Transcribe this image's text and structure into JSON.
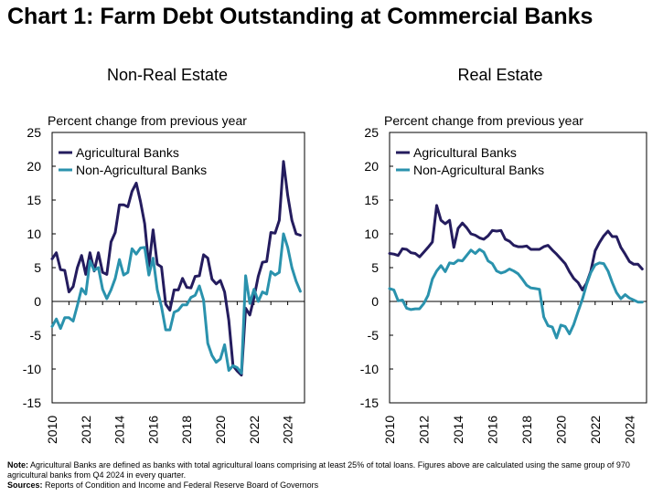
{
  "title": "Chart 1: Farm Debt Outstanding at Commercial Banks",
  "colors": {
    "agricultural": "#241c5e",
    "non_agricultural": "#2a92ad",
    "axis": "#000000"
  },
  "notes": {
    "note_label": "Note:",
    "note_text": " Agricultural Banks are defined as banks with total agricultural loans comprising at least 25% of total loans. Figures above are calculated using the same group of 970 agricultural banks from Q4 2024 in every quarter.",
    "sources_label": "Sources:",
    "sources_text": " Reports of Condition and Income and Federal Reserve Board of Governors"
  },
  "chart_data": [
    {
      "type": "line",
      "title": "Non-Real Estate",
      "ylabel": "Percent change from previous year",
      "xlim": [
        2010,
        2025
      ],
      "ylim": [
        -15,
        25
      ],
      "yticks": [
        "25",
        "20",
        "15",
        "10",
        "5",
        "0",
        "-5",
        "-10",
        "-15"
      ],
      "xticks": [
        "2010",
        "2012",
        "2014",
        "2016",
        "2018",
        "2020",
        "2022",
        "2024"
      ],
      "legend": "top-left",
      "series": [
        {
          "name": "Agricultural Banks",
          "x": [
            2010.0,
            2010.25,
            2010.5,
            2010.75,
            2011.0,
            2011.25,
            2011.5,
            2011.75,
            2012.0,
            2012.25,
            2012.5,
            2012.75,
            2013.0,
            2013.25,
            2013.5,
            2013.75,
            2014.0,
            2014.25,
            2014.5,
            2014.75,
            2015.0,
            2015.25,
            2015.5,
            2015.75,
            2016.0,
            2016.25,
            2016.5,
            2016.75,
            2017.0,
            2017.25,
            2017.5,
            2017.75,
            2018.0,
            2018.25,
            2018.5,
            2018.75,
            2019.0,
            2019.25,
            2019.5,
            2019.75,
            2020.0,
            2020.25,
            2020.5,
            2020.75,
            2021.0,
            2021.25,
            2021.5,
            2021.75,
            2022.0,
            2022.25,
            2022.5,
            2022.75,
            2023.0,
            2023.25,
            2023.5,
            2023.75,
            2024.0,
            2024.25,
            2024.5,
            2024.75
          ],
          "values": [
            6.3,
            7.2,
            4.7,
            4.6,
            1.4,
            2.2,
            5.0,
            6.8,
            4.0,
            7.2,
            4.5,
            7.2,
            4.3,
            4.0,
            8.8,
            10.2,
            14.3,
            14.3,
            14.0,
            16.3,
            17.5,
            14.8,
            11.5,
            5.2,
            10.6,
            5.5,
            5.1,
            -0.4,
            -1.3,
            1.7,
            1.7,
            3.4,
            2.1,
            2.0,
            3.7,
            3.8,
            6.9,
            6.4,
            3.3,
            2.6,
            3.1,
            1.4,
            -2.8,
            -9.5,
            -10.3,
            -10.9,
            -1.0,
            -2.0,
            0.6,
            3.7,
            5.8,
            5.9,
            10.2,
            10.1,
            12.0,
            20.7,
            15.7,
            12.0,
            10.0,
            9.8
          ]
        },
        {
          "name": "Non-Agricultural Banks",
          "x": [
            2010.0,
            2010.25,
            2010.5,
            2010.75,
            2011.0,
            2011.25,
            2011.5,
            2011.75,
            2012.0,
            2012.25,
            2012.5,
            2012.75,
            2013.0,
            2013.25,
            2013.5,
            2013.75,
            2014.0,
            2014.25,
            2014.5,
            2014.75,
            2015.0,
            2015.25,
            2015.5,
            2015.75,
            2016.0,
            2016.25,
            2016.5,
            2016.75,
            2017.0,
            2017.25,
            2017.5,
            2017.75,
            2018.0,
            2018.25,
            2018.5,
            2018.75,
            2019.0,
            2019.25,
            2019.5,
            2019.75,
            2020.0,
            2020.25,
            2020.5,
            2020.75,
            2021.0,
            2021.25,
            2021.5,
            2021.75,
            2022.0,
            2022.25,
            2022.5,
            2022.75,
            2023.0,
            2023.25,
            2023.5,
            2023.75,
            2024.0,
            2024.25,
            2024.5,
            2024.75
          ],
          "values": [
            -3.7,
            -2.6,
            -4.0,
            -2.4,
            -2.4,
            -2.9,
            -0.6,
            1.9,
            1.1,
            6.0,
            4.6,
            5.0,
            1.8,
            0.4,
            1.7,
            3.4,
            6.2,
            3.9,
            4.3,
            7.8,
            7.0,
            7.9,
            8.0,
            3.9,
            6.4,
            1.7,
            -0.8,
            -4.2,
            -4.2,
            -1.6,
            -1.3,
            -0.5,
            -0.5,
            0.6,
            0.9,
            2.3,
            0.2,
            -6.2,
            -8.0,
            -9.0,
            -8.5,
            -6.4,
            -10.2,
            -9.5,
            -9.8,
            -10.6,
            3.8,
            -0.3,
            1.8,
            0.0,
            1.4,
            1.1,
            4.4,
            3.9,
            4.3,
            10.0,
            8.0,
            5.0,
            3.0,
            1.5
          ]
        }
      ]
    },
    {
      "type": "line",
      "title": "Real Estate",
      "ylabel": "Percent change from previous year",
      "xlim": [
        2010,
        2025
      ],
      "ylim": [
        -15,
        25
      ],
      "yticks": [
        "25",
        "20",
        "15",
        "10",
        "5",
        "0",
        "-5",
        "-10",
        "-15"
      ],
      "xticks": [
        "2010",
        "2012",
        "2014",
        "2016",
        "2018",
        "2020",
        "2022",
        "2024"
      ],
      "legend": "top-left",
      "series": [
        {
          "name": "Agricultural Banks",
          "x": [
            2010.0,
            2010.25,
            2010.5,
            2010.75,
            2011.0,
            2011.25,
            2011.5,
            2011.75,
            2012.0,
            2012.25,
            2012.5,
            2012.75,
            2013.0,
            2013.25,
            2013.5,
            2013.75,
            2014.0,
            2014.25,
            2014.5,
            2014.75,
            2015.0,
            2015.25,
            2015.5,
            2015.75,
            2016.0,
            2016.25,
            2016.5,
            2016.75,
            2017.0,
            2017.25,
            2017.5,
            2017.75,
            2018.0,
            2018.25,
            2018.5,
            2018.75,
            2019.0,
            2019.25,
            2019.5,
            2019.75,
            2020.0,
            2020.25,
            2020.5,
            2020.75,
            2021.0,
            2021.25,
            2021.5,
            2021.75,
            2022.0,
            2022.25,
            2022.5,
            2022.75,
            2023.0,
            2023.25,
            2023.5,
            2023.75,
            2024.0,
            2024.25,
            2024.5,
            2024.75
          ],
          "values": [
            7.1,
            7.0,
            6.8,
            7.8,
            7.7,
            7.2,
            7.1,
            6.6,
            7.3,
            8.0,
            8.8,
            14.2,
            12.0,
            11.5,
            12.0,
            8.0,
            10.8,
            11.6,
            10.9,
            10.0,
            9.8,
            9.4,
            9.2,
            9.7,
            10.5,
            10.4,
            10.5,
            9.2,
            8.9,
            8.3,
            8.1,
            8.1,
            8.2,
            7.7,
            7.7,
            7.7,
            8.1,
            8.3,
            7.6,
            7.0,
            6.3,
            5.6,
            4.4,
            3.4,
            2.8,
            1.7,
            2.7,
            4.5,
            7.5,
            8.7,
            9.7,
            10.4,
            9.6,
            9.6,
            8.0,
            7.0,
            5.9,
            5.5,
            5.5,
            4.8
          ]
        },
        {
          "name": "Non-Agricultural Banks",
          "x": [
            2010.0,
            2010.25,
            2010.5,
            2010.75,
            2011.0,
            2011.25,
            2011.5,
            2011.75,
            2012.0,
            2012.25,
            2012.5,
            2012.75,
            2013.0,
            2013.25,
            2013.5,
            2013.75,
            2014.0,
            2014.25,
            2014.5,
            2014.75,
            2015.0,
            2015.25,
            2015.5,
            2015.75,
            2016.0,
            2016.25,
            2016.5,
            2016.75,
            2017.0,
            2017.25,
            2017.5,
            2017.75,
            2018.0,
            2018.25,
            2018.5,
            2018.75,
            2019.0,
            2019.25,
            2019.5,
            2019.75,
            2020.0,
            2020.25,
            2020.5,
            2020.75,
            2021.0,
            2021.25,
            2021.5,
            2021.75,
            2022.0,
            2022.25,
            2022.5,
            2022.75,
            2023.0,
            2023.25,
            2023.5,
            2023.75,
            2024.0,
            2024.25,
            2024.5,
            2024.75
          ],
          "values": [
            1.9,
            1.7,
            0.1,
            0.2,
            -1.0,
            -1.2,
            -1.1,
            -1.1,
            -0.3,
            0.9,
            3.3,
            4.5,
            5.3,
            4.4,
            5.7,
            5.6,
            6.1,
            6.0,
            6.8,
            7.6,
            7.1,
            7.7,
            7.3,
            6.0,
            5.6,
            4.5,
            4.2,
            4.4,
            4.8,
            4.5,
            4.1,
            3.3,
            2.4,
            2.0,
            1.9,
            1.8,
            -2.3,
            -3.6,
            -3.8,
            -5.4,
            -3.5,
            -3.7,
            -4.8,
            -3.4,
            -1.5,
            0.3,
            2.5,
            4.3,
            5.4,
            5.7,
            5.6,
            4.5,
            2.8,
            1.3,
            0.4,
            1.0,
            0.5,
            0.2,
            -0.1,
            -0.1
          ]
        }
      ]
    }
  ]
}
